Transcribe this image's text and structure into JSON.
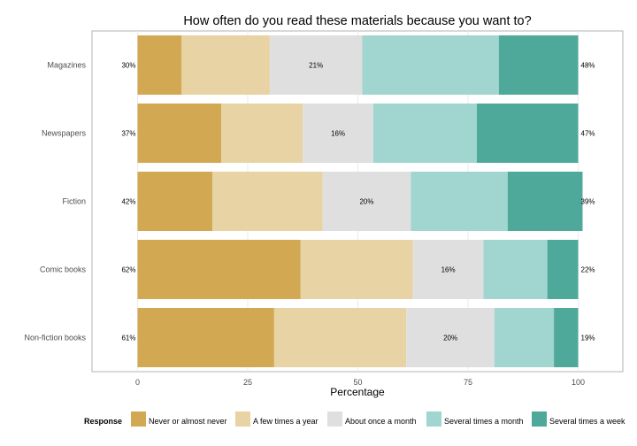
{
  "chart_data": {
    "type": "bar",
    "orientation": "horizontal",
    "stacked": true,
    "title": "How often do you read these materials because you want to?",
    "xlabel": "Percentage",
    "ylabel": "",
    "xlim": [
      0,
      100
    ],
    "x_ticks": [
      "0",
      "25",
      "50",
      "75",
      "100"
    ],
    "grid": true,
    "legend": {
      "title": "Response",
      "position": "bottom"
    },
    "categories": [
      "Magazines",
      "Newspapers",
      "Fiction",
      "Comic books",
      "Non-fiction books"
    ],
    "series": [
      {
        "name": "Never or almost never",
        "color": "#d2a853",
        "values": [
          10,
          19,
          17,
          37,
          31
        ]
      },
      {
        "name": "A few times a year",
        "color": "#e7d3a3",
        "values": [
          20,
          18.5,
          25,
          25.5,
          30
        ]
      },
      {
        "name": "About once a month",
        "color": "#dfdfdf",
        "values": [
          21,
          16,
          20,
          16,
          20
        ]
      },
      {
        "name": "Several times a month",
        "color": "#a1d5cf",
        "values": [
          31,
          23.5,
          22,
          14.5,
          13.5
        ]
      },
      {
        "name": "Several times a week",
        "color": "#4ea99b",
        "values": [
          18,
          23,
          17,
          7,
          5.5
        ]
      }
    ],
    "left_labels": [
      "30%",
      "37%",
      "42%",
      "62%",
      "61%"
    ],
    "middle_labels": [
      "21%",
      "16%",
      "20%",
      "16%",
      "20%"
    ],
    "right_labels": [
      "48%",
      "47%",
      "39%",
      "22%",
      "19%"
    ]
  }
}
